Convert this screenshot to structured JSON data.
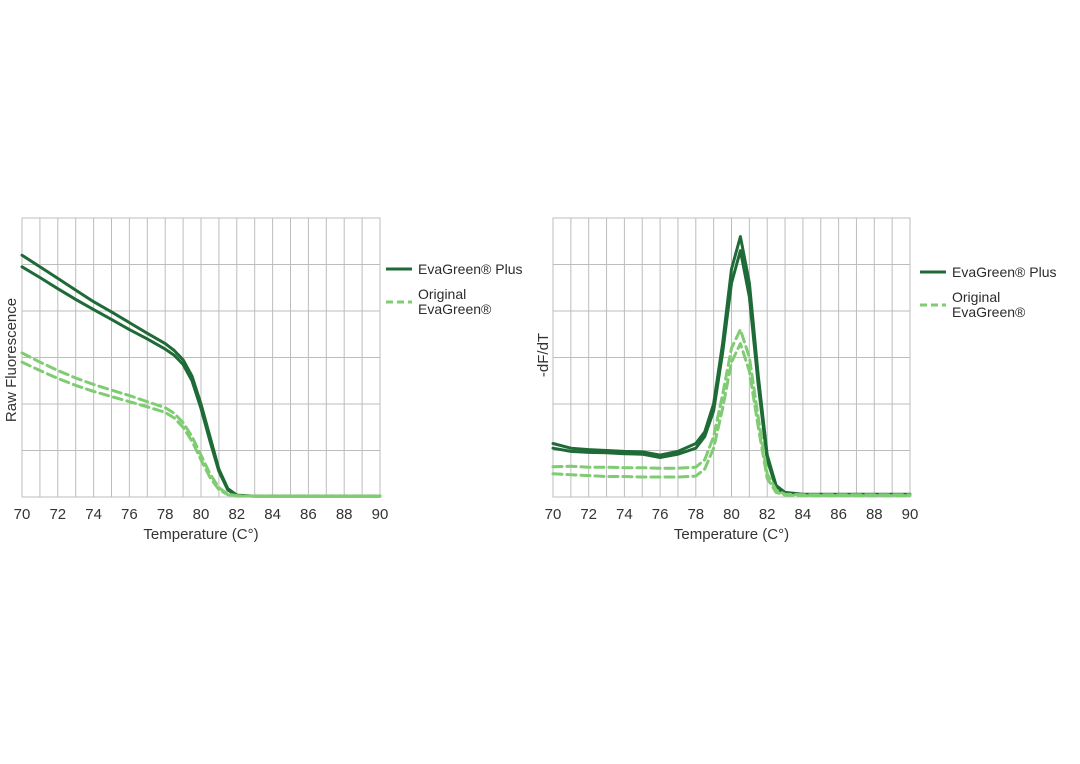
{
  "colors": {
    "evagreen_plus": "#1e6b37",
    "original_evagreen": "#7fcc72",
    "grid": "#bdbdbd",
    "axis_text": "#333333"
  },
  "chart_data": [
    {
      "type": "line",
      "xlabel": "Temperature (C°)",
      "ylabel": "Raw Fluorescence",
      "xlim": [
        70,
        90
      ],
      "ylim": [
        0,
        6
      ],
      "x_ticks": [
        "70",
        "72",
        "74",
        "76",
        "78",
        "80",
        "82",
        "84",
        "86",
        "88",
        "90"
      ],
      "grid": true,
      "legend": "right",
      "series": [
        {
          "name": "EvaGreen® Plus",
          "style": "solid",
          "color": "#1e6b37",
          "x": [
            70,
            71,
            72,
            73,
            74,
            75,
            76,
            77,
            78,
            78.5,
            79,
            79.5,
            80,
            80.5,
            81,
            81.5,
            82,
            83,
            84,
            86,
            88,
            90
          ],
          "y": [
            5.2,
            4.95,
            4.7,
            4.45,
            4.2,
            3.98,
            3.75,
            3.52,
            3.3,
            3.15,
            2.95,
            2.6,
            2.0,
            1.3,
            0.6,
            0.18,
            0.04,
            0.02,
            0.02,
            0.02,
            0.02,
            0.02
          ]
        },
        {
          "name": "",
          "style": "solid",
          "color": "#1e6b37",
          "x": [
            70,
            71,
            72,
            73,
            74,
            75,
            76,
            77,
            78,
            78.5,
            79,
            79.5,
            80,
            80.5,
            81,
            81.5,
            82,
            83,
            84,
            86,
            88,
            90
          ],
          "y": [
            4.95,
            4.72,
            4.48,
            4.25,
            4.03,
            3.82,
            3.6,
            3.4,
            3.18,
            3.05,
            2.85,
            2.5,
            1.9,
            1.2,
            0.55,
            0.15,
            0.03,
            0.02,
            0.02,
            0.02,
            0.02,
            0.02
          ]
        },
        {
          "name": "Original EvaGreen®",
          "style": "dashed",
          "color": "#7fcc72",
          "x": [
            70,
            71,
            72,
            73,
            74,
            75,
            76,
            77,
            78,
            78.5,
            79,
            79.5,
            80,
            80.5,
            81,
            81.5,
            82,
            83,
            84,
            86,
            88,
            90
          ],
          "y": [
            3.1,
            2.9,
            2.72,
            2.56,
            2.42,
            2.3,
            2.18,
            2.05,
            1.92,
            1.8,
            1.6,
            1.3,
            0.9,
            0.5,
            0.2,
            0.06,
            0.03,
            0.02,
            0.02,
            0.02,
            0.02,
            0.02
          ]
        },
        {
          "name": "",
          "style": "dashed",
          "color": "#7fcc72",
          "x": [
            70,
            71,
            72,
            73,
            74,
            75,
            76,
            77,
            78,
            78.5,
            79,
            79.5,
            80,
            80.5,
            81,
            81.5,
            82,
            83,
            84,
            86,
            88,
            90
          ],
          "y": [
            2.9,
            2.72,
            2.55,
            2.4,
            2.27,
            2.16,
            2.05,
            1.94,
            1.82,
            1.7,
            1.5,
            1.2,
            0.8,
            0.42,
            0.16,
            0.05,
            0.02,
            0.02,
            0.02,
            0.02,
            0.02,
            0.02
          ]
        }
      ]
    },
    {
      "type": "line",
      "xlabel": "Temperature (C°)",
      "ylabel": "-dF/dT",
      "xlim": [
        70,
        90
      ],
      "ylim": [
        0,
        6
      ],
      "x_ticks": [
        "70",
        "72",
        "74",
        "76",
        "78",
        "80",
        "82",
        "84",
        "86",
        "88",
        "90"
      ],
      "grid": true,
      "legend": "right",
      "series": [
        {
          "name": "EvaGreen® Plus",
          "style": "solid",
          "color": "#1e6b37",
          "x": [
            70,
            71,
            72,
            73,
            74,
            75,
            76,
            77,
            78,
            78.5,
            79,
            79.5,
            80,
            80.5,
            81,
            81.5,
            82,
            82.5,
            83,
            84,
            86,
            88,
            90
          ],
          "y": [
            1.15,
            1.05,
            1.02,
            1.0,
            0.98,
            0.97,
            0.9,
            0.98,
            1.15,
            1.4,
            2.0,
            3.3,
            4.9,
            5.6,
            4.6,
            2.6,
            0.9,
            0.25,
            0.1,
            0.06,
            0.06,
            0.06,
            0.06
          ]
        },
        {
          "name": "",
          "style": "solid",
          "color": "#1e6b37",
          "x": [
            70,
            71,
            72,
            73,
            74,
            75,
            76,
            77,
            78,
            78.5,
            79,
            79.5,
            80,
            80.5,
            81,
            81.5,
            82,
            82.5,
            83,
            84,
            86,
            88,
            90
          ],
          "y": [
            1.05,
            0.98,
            0.96,
            0.95,
            0.93,
            0.92,
            0.85,
            0.92,
            1.05,
            1.3,
            1.85,
            3.1,
            4.6,
            5.3,
            4.3,
            2.4,
            0.8,
            0.2,
            0.08,
            0.05,
            0.05,
            0.05,
            0.05
          ]
        },
        {
          "name": "Original EvaGreen®",
          "style": "dashed",
          "color": "#7fcc72",
          "x": [
            70,
            71,
            72,
            73,
            74,
            75,
            76,
            77,
            78,
            78.5,
            79,
            79.5,
            80,
            80.5,
            81,
            81.5,
            82,
            82.5,
            83,
            84,
            86,
            88,
            90
          ],
          "y": [
            0.65,
            0.66,
            0.64,
            0.64,
            0.63,
            0.63,
            0.62,
            0.62,
            0.64,
            0.8,
            1.3,
            2.2,
            3.2,
            3.6,
            3.0,
            1.7,
            0.5,
            0.15,
            0.06,
            0.05,
            0.05,
            0.05,
            0.05
          ]
        },
        {
          "name": "",
          "style": "dashed",
          "color": "#7fcc72",
          "x": [
            70,
            71,
            72,
            73,
            74,
            75,
            76,
            77,
            78,
            78.5,
            79,
            79.5,
            80,
            80.5,
            81,
            81.5,
            82,
            82.5,
            83,
            84,
            86,
            88,
            90
          ],
          "y": [
            0.5,
            0.48,
            0.46,
            0.44,
            0.44,
            0.43,
            0.43,
            0.43,
            0.45,
            0.6,
            1.05,
            1.9,
            2.9,
            3.3,
            2.7,
            1.5,
            0.4,
            0.1,
            0.04,
            0.03,
            0.03,
            0.03,
            0.03
          ]
        }
      ]
    }
  ],
  "legend": {
    "plus_label": "EvaGreen® Plus",
    "original_label": "Original\nEvaGreen®"
  }
}
